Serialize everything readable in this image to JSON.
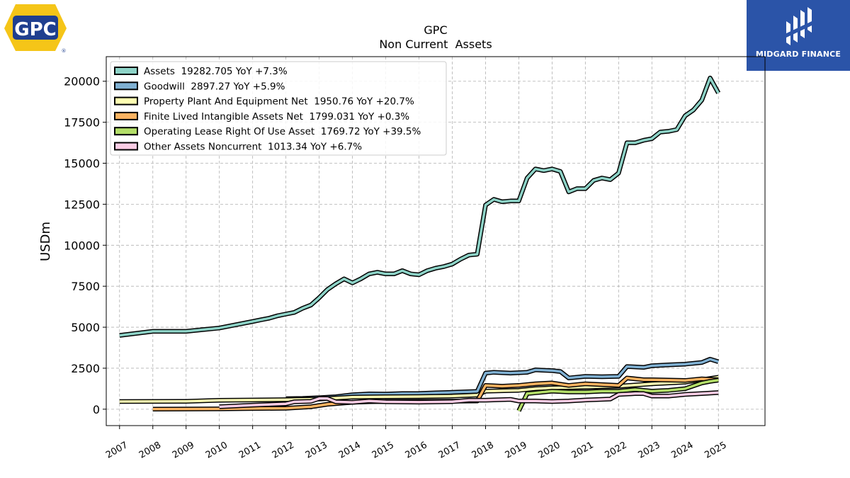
{
  "logos": {
    "left_brand": "GPC",
    "left_registered": "®",
    "right_brand": "MIDGARD FINANCE"
  },
  "chart_data": {
    "type": "line",
    "title": "GPC",
    "subtitle": "Non Current  Assets",
    "xlabel": "",
    "ylabel": "USDm",
    "xlim": [
      2006.6,
      2026.4
    ],
    "ylim": [
      -1000,
      21500
    ],
    "yticks": [
      0,
      2500,
      5000,
      7500,
      10000,
      12500,
      15000,
      17500,
      20000
    ],
    "xticks": [
      2007,
      2008,
      2009,
      2010,
      2011,
      2012,
      2013,
      2014,
      2015,
      2016,
      2017,
      2018,
      2019,
      2020,
      2021,
      2022,
      2023,
      2024,
      2025
    ],
    "grid": true,
    "legend_position": "top-left",
    "series": [
      {
        "name": "Assets",
        "legend": "Assets  19282.705 YoY +7.3%",
        "color": "#8dd3c7",
        "points": [
          [
            2007.0,
            4500
          ],
          [
            2008.0,
            4750
          ],
          [
            2009.0,
            4750
          ],
          [
            2009.5,
            4850
          ],
          [
            2010.0,
            4950
          ],
          [
            2010.5,
            5150
          ],
          [
            2011.0,
            5350
          ],
          [
            2011.25,
            5450
          ],
          [
            2011.5,
            5550
          ],
          [
            2011.75,
            5700
          ],
          [
            2012.0,
            5800
          ],
          [
            2012.25,
            5900
          ],
          [
            2012.5,
            6150
          ],
          [
            2012.75,
            6350
          ],
          [
            2013.0,
            6800
          ],
          [
            2013.25,
            7300
          ],
          [
            2013.5,
            7650
          ],
          [
            2013.75,
            7950
          ],
          [
            2014.0,
            7700
          ],
          [
            2014.25,
            7950
          ],
          [
            2014.5,
            8250
          ],
          [
            2014.75,
            8350
          ],
          [
            2015.0,
            8250
          ],
          [
            2015.25,
            8250
          ],
          [
            2015.5,
            8450
          ],
          [
            2015.75,
            8250
          ],
          [
            2016.0,
            8200
          ],
          [
            2016.25,
            8450
          ],
          [
            2016.5,
            8600
          ],
          [
            2016.75,
            8700
          ],
          [
            2017.0,
            8850
          ],
          [
            2017.25,
            9150
          ],
          [
            2017.5,
            9400
          ],
          [
            2017.75,
            9450
          ],
          [
            2018.0,
            12450
          ],
          [
            2018.25,
            12800
          ],
          [
            2018.5,
            12650
          ],
          [
            2018.75,
            12700
          ],
          [
            2019.0,
            12700
          ],
          [
            2019.25,
            14100
          ],
          [
            2019.5,
            14650
          ],
          [
            2019.75,
            14550
          ],
          [
            2020.0,
            14650
          ],
          [
            2020.25,
            14500
          ],
          [
            2020.5,
            13250
          ],
          [
            2020.75,
            13450
          ],
          [
            2021.0,
            13450
          ],
          [
            2021.25,
            13950
          ],
          [
            2021.5,
            14100
          ],
          [
            2021.75,
            14000
          ],
          [
            2022.0,
            14400
          ],
          [
            2022.25,
            16250
          ],
          [
            2022.5,
            16250
          ],
          [
            2022.75,
            16400
          ],
          [
            2023.0,
            16500
          ],
          [
            2023.25,
            16900
          ],
          [
            2023.5,
            16950
          ],
          [
            2023.75,
            17050
          ],
          [
            2024.0,
            17900
          ],
          [
            2024.25,
            18250
          ],
          [
            2024.5,
            18850
          ],
          [
            2024.75,
            20200
          ],
          [
            2025.0,
            19283
          ]
        ]
      },
      {
        "name": "Goodwill",
        "legend": "Goodwill  2897.27 YoY +5.9%",
        "color": "#80b1d3",
        "points": [
          [
            2012.0,
            640
          ],
          [
            2012.5,
            660
          ],
          [
            2013.0,
            700
          ],
          [
            2013.5,
            760
          ],
          [
            2014.0,
            880
          ],
          [
            2014.5,
            930
          ],
          [
            2015.0,
            920
          ],
          [
            2015.5,
            950
          ],
          [
            2016.0,
            960
          ],
          [
            2016.5,
            1000
          ],
          [
            2017.0,
            1030
          ],
          [
            2017.75,
            1080
          ],
          [
            2018.0,
            2200
          ],
          [
            2018.25,
            2250
          ],
          [
            2018.75,
            2200
          ],
          [
            2019.25,
            2250
          ],
          [
            2019.5,
            2400
          ],
          [
            2020.0,
            2350
          ],
          [
            2020.25,
            2300
          ],
          [
            2020.5,
            1900
          ],
          [
            2021.0,
            2000
          ],
          [
            2021.5,
            1980
          ],
          [
            2022.0,
            2000
          ],
          [
            2022.25,
            2600
          ],
          [
            2022.75,
            2550
          ],
          [
            2023.0,
            2650
          ],
          [
            2023.5,
            2700
          ],
          [
            2024.0,
            2750
          ],
          [
            2024.5,
            2850
          ],
          [
            2024.75,
            3050
          ],
          [
            2025.0,
            2897
          ]
        ]
      },
      {
        "name": "Property Plant And Equipment Net",
        "legend": "Property Plant And Equipment Net  1950.76 YoY +20.7%",
        "color": "#ffffb3",
        "points": [
          [
            2007.0,
            470
          ],
          [
            2009.0,
            480
          ],
          [
            2010.0,
            540
          ],
          [
            2011.0,
            560
          ],
          [
            2012.0,
            580
          ],
          [
            2013.0,
            620
          ],
          [
            2014.0,
            740
          ],
          [
            2015.0,
            760
          ],
          [
            2016.0,
            770
          ],
          [
            2017.0,
            800
          ],
          [
            2017.75,
            860
          ],
          [
            2018.0,
            1100
          ],
          [
            2019.0,
            1150
          ],
          [
            2019.5,
            1250
          ],
          [
            2020.0,
            1300
          ],
          [
            2021.0,
            1350
          ],
          [
            2022.0,
            1400
          ],
          [
            2023.0,
            1550
          ],
          [
            2024.0,
            1650
          ],
          [
            2024.5,
            1800
          ],
          [
            2025.0,
            1951
          ]
        ]
      },
      {
        "name": "Finite Lived Intangible Assets Net",
        "legend": "Finite Lived Intangible Assets Net  1799.031 YoY +0.3%",
        "color": "#fdb462",
        "points": [
          [
            2008.0,
            0
          ],
          [
            2010.0,
            20
          ],
          [
            2011.0,
            40
          ],
          [
            2012.0,
            60
          ],
          [
            2012.75,
            150
          ],
          [
            2013.25,
            300
          ],
          [
            2014.0,
            420
          ],
          [
            2014.5,
            460
          ],
          [
            2015.0,
            470
          ],
          [
            2016.0,
            480
          ],
          [
            2017.0,
            490
          ],
          [
            2017.75,
            500
          ],
          [
            2018.0,
            1450
          ],
          [
            2018.5,
            1400
          ],
          [
            2019.0,
            1450
          ],
          [
            2019.5,
            1550
          ],
          [
            2020.0,
            1600
          ],
          [
            2020.5,
            1450
          ],
          [
            2021.0,
            1550
          ],
          [
            2021.5,
            1500
          ],
          [
            2022.0,
            1450
          ],
          [
            2022.25,
            1900
          ],
          [
            2022.75,
            1800
          ],
          [
            2023.0,
            1800
          ],
          [
            2024.0,
            1750
          ],
          [
            2024.5,
            1850
          ],
          [
            2025.0,
            1799
          ]
        ]
      },
      {
        "name": "Operating Lease Right Of Use Asset",
        "legend": "Operating Lease Right Of Use Asset  1769.72 YoY +39.5%",
        "color": "#b3de69",
        "points": [
          [
            2019.0,
            -100
          ],
          [
            2019.25,
            950
          ],
          [
            2019.5,
            1000
          ],
          [
            2020.0,
            1100
          ],
          [
            2020.5,
            1050
          ],
          [
            2021.0,
            1050
          ],
          [
            2021.5,
            1100
          ],
          [
            2022.0,
            1100
          ],
          [
            2022.5,
            1200
          ],
          [
            2023.0,
            1100
          ],
          [
            2023.5,
            1150
          ],
          [
            2024.0,
            1250
          ],
          [
            2024.5,
            1600
          ],
          [
            2024.75,
            1700
          ],
          [
            2025.0,
            1770
          ]
        ]
      },
      {
        "name": "Other Assets Noncurrent",
        "legend": "Other Assets Noncurrent  1013.34 YoY +6.7%",
        "color": "#fccde5",
        "points": [
          [
            2010.0,
            150
          ],
          [
            2011.0,
            250
          ],
          [
            2012.0,
            330
          ],
          [
            2012.25,
            450
          ],
          [
            2012.75,
            480
          ],
          [
            2013.0,
            650
          ],
          [
            2013.25,
            650
          ],
          [
            2013.5,
            450
          ],
          [
            2014.0,
            420
          ],
          [
            2014.5,
            500
          ],
          [
            2015.0,
            450
          ],
          [
            2016.0,
            430
          ],
          [
            2017.0,
            460
          ],
          [
            2017.5,
            550
          ],
          [
            2018.0,
            550
          ],
          [
            2018.75,
            600
          ],
          [
            2019.0,
            500
          ],
          [
            2019.5,
            500
          ],
          [
            2020.0,
            470
          ],
          [
            2020.5,
            500
          ],
          [
            2021.0,
            560
          ],
          [
            2021.75,
            620
          ],
          [
            2022.0,
            900
          ],
          [
            2022.5,
            950
          ],
          [
            2022.75,
            950
          ],
          [
            2023.0,
            800
          ],
          [
            2023.5,
            800
          ],
          [
            2024.0,
            900
          ],
          [
            2024.5,
            950
          ],
          [
            2025.0,
            1013
          ]
        ]
      }
    ]
  }
}
